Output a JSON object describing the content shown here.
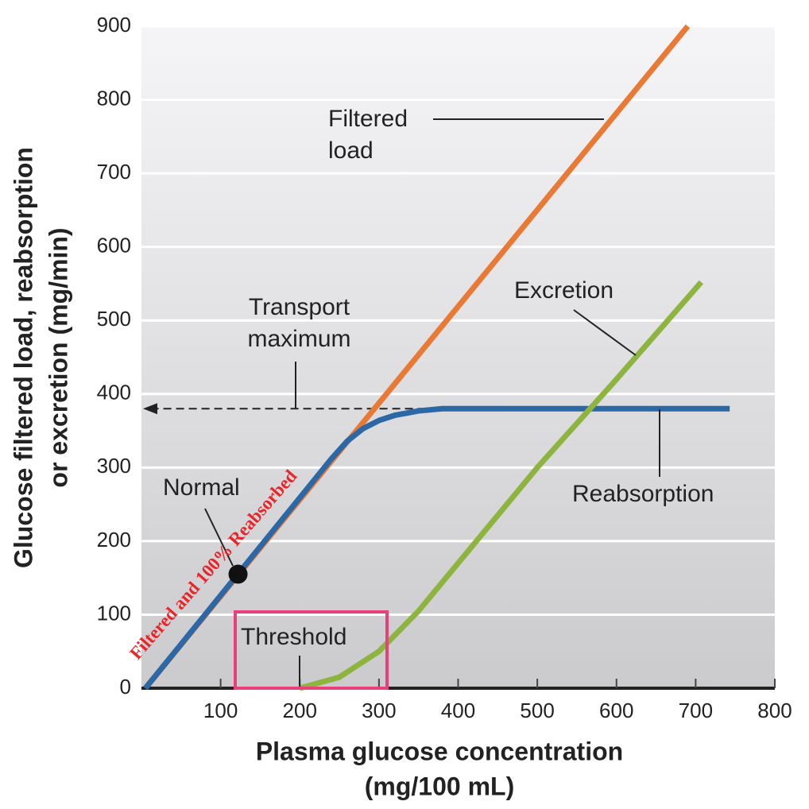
{
  "chart_data": {
    "type": "line",
    "x_label": [
      "Plasma glucose concentration",
      "(mg/100 mL)"
    ],
    "y_label": [
      "Glucose filtered load, reabsorption",
      "or excretion (mg/min)"
    ],
    "xlim": [
      0,
      800
    ],
    "xticks": [
      100,
      200,
      300,
      400,
      500,
      600,
      700,
      800
    ],
    "ylim": [
      0,
      900
    ],
    "yticks": [
      0,
      100,
      200,
      300,
      400,
      500,
      600,
      700,
      800,
      900
    ],
    "grid": true,
    "series": [
      {
        "name": "Filtered load",
        "color": "#e87a35",
        "x": [
          5,
          690
        ],
        "values": [
          0,
          900
        ]
      },
      {
        "name": "Reabsorption",
        "color": "#2d68a6",
        "x": [
          5,
          240,
          260,
          280,
          300,
          320,
          350,
          380,
          400,
          743
        ],
        "values": [
          0,
          312,
          336,
          353,
          364,
          371,
          377,
          380,
          380,
          380
        ]
      },
      {
        "name": "Excretion",
        "color": "#8db43f",
        "x": [
          200,
          250,
          300,
          350,
          400,
          450,
          500,
          600,
          707
        ],
        "values": [
          0,
          15,
          50,
          105,
          170,
          235,
          300,
          420,
          552
        ]
      }
    ],
    "transport_maximum": {
      "label": "Transport maximum",
      "value": 380
    },
    "normal_point": {
      "label": "Normal",
      "x": 122,
      "y": 155
    },
    "threshold": {
      "label": "Threshold",
      "x": 200
    },
    "annotation": "Filtered and 100% Reabsorbed"
  }
}
